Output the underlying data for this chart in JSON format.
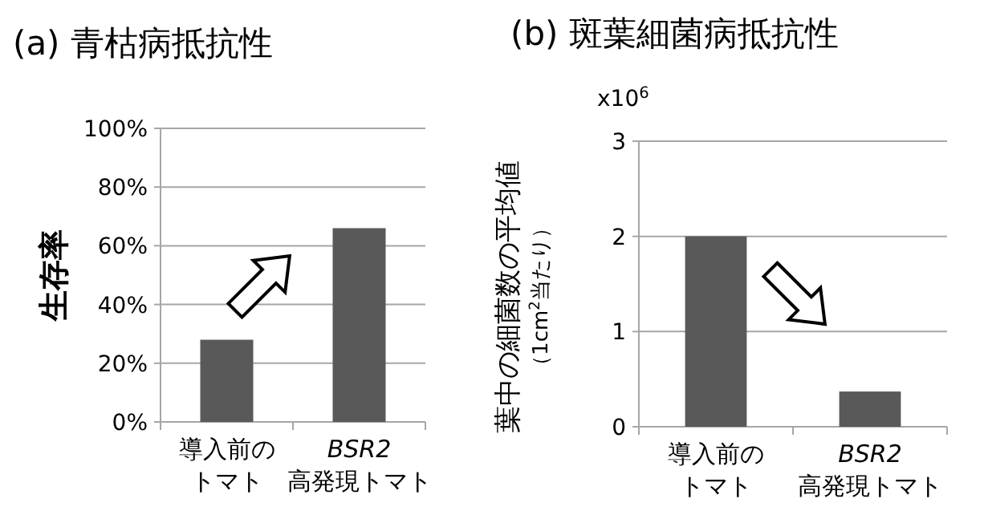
{
  "chart_data": [
    {
      "type": "bar",
      "title": "(a) 青枯病抵抗性",
      "ylabel": "生存率",
      "categories": [
        "導入前のトマト",
        "*BSR2* 高発現トマト"
      ],
      "values": [
        28,
        66
      ],
      "color": "#595959",
      "ylim": [
        0,
        100
      ],
      "yticks": [
        {
          "value": 0,
          "label": "0%"
        },
        {
          "value": 20,
          "label": "20%"
        },
        {
          "value": 40,
          "label": "40%"
        },
        {
          "value": 60,
          "label": "60%"
        },
        {
          "value": 80,
          "label": "80%"
        },
        {
          "value": 100,
          "label": "100%"
        }
      ],
      "grid": "y"
    },
    {
      "type": "bar",
      "title": "(b) 斑葉細菌病抵抗性",
      "ylabel": "葉中の細菌数の平均値（1cm$^{2}$当たり）",
      "annotations": [
        "x10$^{6}$"
      ],
      "categories": [
        "導入前のトマト",
        "*BSR2* 高発現トマト"
      ],
      "values": [
        2.0,
        0.37
      ],
      "color": "#595959",
      "ylim": [
        0,
        3
      ],
      "yticks": [
        0,
        1,
        2,
        3
      ],
      "grid": "y"
    }
  ]
}
